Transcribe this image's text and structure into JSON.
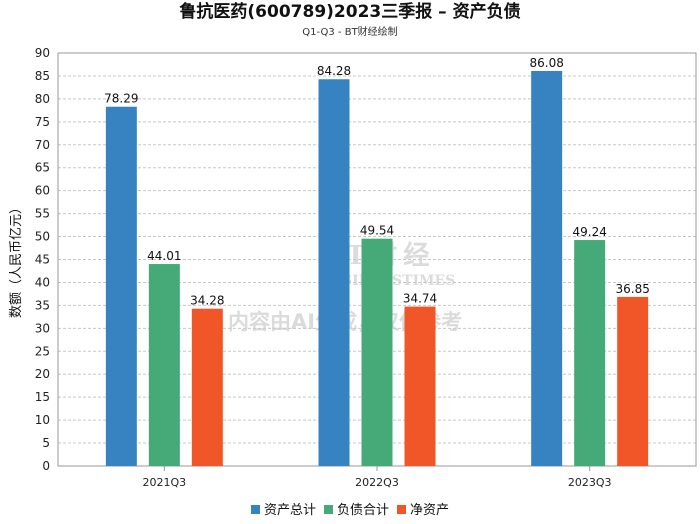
{
  "title": "鲁抗医药(600789)2023三季报 – 资产负债",
  "subtitle": "Q1-Q3 - BT财经绘制",
  "watermark": {
    "brand": "BT财经",
    "brand_en": "BUSINESSTIMES",
    "notice": "内容由AI生成，仅供参考"
  },
  "chart_data": {
    "type": "bar",
    "title": "鲁抗医药(600789)2023三季报 – 资产负债",
    "ylabel": "数额（人民币亿元）",
    "xlabel": "",
    "ylim": [
      0,
      90
    ],
    "yticks": [
      0,
      5,
      10,
      15,
      20,
      25,
      30,
      35,
      40,
      45,
      50,
      55,
      60,
      65,
      70,
      75,
      80,
      85,
      90
    ],
    "grid": true,
    "legend_position": "bottom",
    "categories": [
      "2021Q3",
      "2022Q3",
      "2023Q3"
    ],
    "series": [
      {
        "name": "资产总计",
        "color": "#3783c1",
        "values": [
          78.29,
          84.28,
          86.08
        ]
      },
      {
        "name": "负债合计",
        "color": "#45aa78",
        "values": [
          44.01,
          49.54,
          49.24
        ]
      },
      {
        "name": "净资产",
        "color": "#f05627",
        "values": [
          34.28,
          34.74,
          36.85
        ]
      }
    ]
  }
}
